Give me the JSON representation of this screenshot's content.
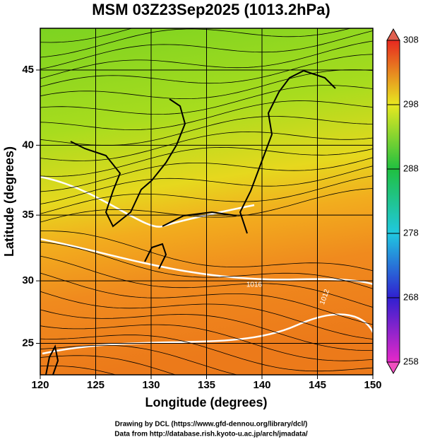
{
  "title": "MSM 03Z23Sep2025 (1013.2hPa)",
  "map": {
    "xlabel": "Longitude (degrees)",
    "ylabel": "Latitude  (degrees)",
    "xlim": [
      120,
      150
    ],
    "ylim": [
      22.4,
      47.6
    ],
    "xticks": [
      120,
      125,
      130,
      135,
      140,
      145,
      150
    ],
    "yticks": [
      25,
      30,
      35,
      40,
      45
    ],
    "grid": true,
    "contour_labels": [
      "1016",
      "1012"
    ]
  },
  "colorbar": {
    "lim": [
      258,
      308
    ],
    "ticks": [
      258,
      268,
      278,
      288,
      298,
      308
    ]
  },
  "credits": [
    "Drawing by DCL (https://www.gfd-dennou.org/library/dcl/)",
    "Data from http://database.rish.kyoto-u.ac.jp/arch/jmadata/"
  ]
}
